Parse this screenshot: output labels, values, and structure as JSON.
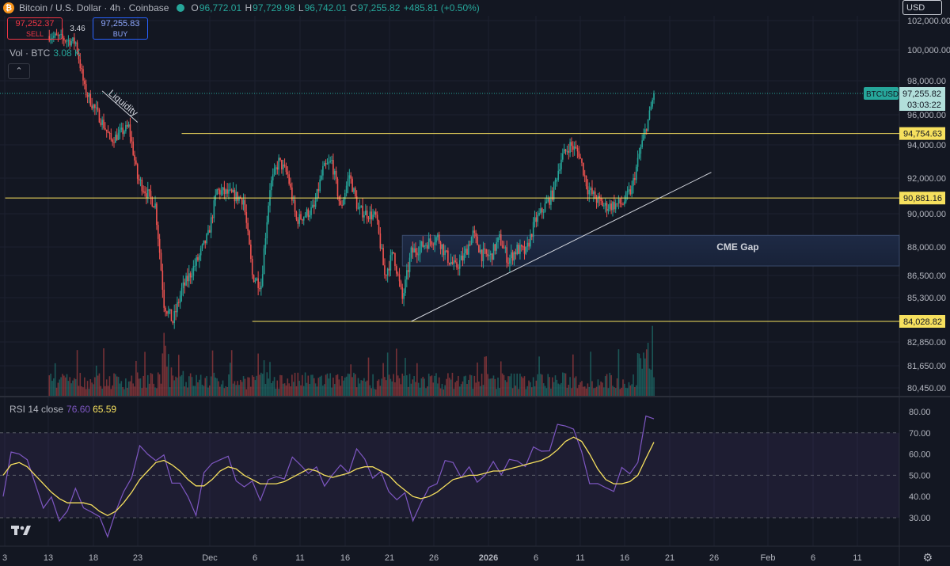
{
  "header": {
    "coin_glyph": "₿",
    "symbol_title": "Bitcoin / U.S. Dollar · 4h · Coinbase",
    "open_label": "O",
    "open": "96,772.01",
    "high_label": "H",
    "high": "97,729.98",
    "low_label": "L",
    "low": "96,742.01",
    "close_label": "C",
    "close": "97,255.82",
    "change": "+485.81 (+0.50%)"
  },
  "trade": {
    "sell_price": "97,252.37",
    "sell_label": "SELL",
    "spread": "3.46",
    "buy_price": "97,255.83",
    "buy_label": "BUY"
  },
  "volume_legend": {
    "label": "Vol · BTC",
    "value": "3.08 K"
  },
  "rsi_legend": {
    "label": "RSI 14 close",
    "rsi": "76.60",
    "ma": "65.59"
  },
  "currency_button": "USD",
  "collapse_glyph": "⌃",
  "settings_glyph": "⚙",
  "colors": {
    "bg": "#131722",
    "up": "#26a69a",
    "down": "#ef5350",
    "level": "#f6e05e",
    "rsi": "#7e57c2",
    "rsi_ma": "#f6e05e",
    "gap": "#1e2a45"
  },
  "chart_data": [
    {
      "type": "candlestick",
      "interval": "4h",
      "price_axis": {
        "ylim": [
          79900,
          102500
        ],
        "ticks": [
          "102,000.00",
          "100,000.00",
          "98,000.00",
          "96,000.00",
          "94,000.00",
          "92,000.00",
          "90,000.00",
          "88,000.00",
          "86,500.00",
          "85,300.00",
          "84,028.82",
          "82,850.00",
          "81,650.00",
          "80,450.00"
        ],
        "tick_values": [
          102000,
          100000,
          98000,
          96000,
          94000,
          92000,
          90000,
          88000,
          86500,
          85300,
          84028.82,
          82850,
          81650,
          80450
        ]
      },
      "time_axis": {
        "labels": [
          "3",
          "13",
          "18",
          "23",
          "Dec",
          "6",
          "11",
          "16",
          "21",
          "26",
          "2026",
          "6",
          "11",
          "16",
          "21",
          "26",
          "Feb",
          "6",
          "11"
        ],
        "bold_labels": [
          "2026"
        ]
      },
      "anchor_points": [
        {
          "date": "Nov 8",
          "price": 101000
        },
        {
          "date": "Nov 11",
          "price": 100500
        },
        {
          "date": "Nov 12",
          "price": 97500
        },
        {
          "date": "Nov 14",
          "price": 95500
        },
        {
          "date": "Nov 15",
          "price": 94300
        },
        {
          "date": "Nov 17",
          "price": 95200
        },
        {
          "date": "Nov 18",
          "price": 92000
        },
        {
          "date": "Nov 19",
          "price": 91200
        },
        {
          "date": "Nov 20",
          "price": 90500
        },
        {
          "date": "Nov 21",
          "price": 85000
        },
        {
          "date": "Nov 22",
          "price": 84000
        },
        {
          "date": "Nov 23",
          "price": 85700
        },
        {
          "date": "Nov 25",
          "price": 87500
        },
        {
          "date": "Nov 26",
          "price": 88700
        },
        {
          "date": "Nov 27",
          "price": 91300
        },
        {
          "date": "Nov 29",
          "price": 91000
        },
        {
          "date": "Nov 30",
          "price": 90800
        },
        {
          "date": "Dec 1",
          "price": 86500
        },
        {
          "date": "Dec 2",
          "price": 86000
        },
        {
          "date": "Dec 3",
          "price": 91500
        },
        {
          "date": "Dec 4",
          "price": 93000
        },
        {
          "date": "Dec 5",
          "price": 92200
        },
        {
          "date": "Dec 6",
          "price": 89600
        },
        {
          "date": "Dec 8",
          "price": 90300
        },
        {
          "date": "Dec 9",
          "price": 92500
        },
        {
          "date": "Dec 10",
          "price": 93000
        },
        {
          "date": "Dec 11",
          "price": 90300
        },
        {
          "date": "Dec 12",
          "price": 92200
        },
        {
          "date": "Dec 13",
          "price": 90200
        },
        {
          "date": "Dec 15",
          "price": 89800
        },
        {
          "date": "Dec 16",
          "price": 86500
        },
        {
          "date": "Dec 17",
          "price": 87700
        },
        {
          "date": "Dec 18",
          "price": 85200
        },
        {
          "date": "Dec 19",
          "price": 87700
        },
        {
          "date": "Dec 21",
          "price": 88300
        },
        {
          "date": "Dec 22",
          "price": 88600
        },
        {
          "date": "Dec 23",
          "price": 87500
        },
        {
          "date": "Dec 24",
          "price": 86900
        },
        {
          "date": "Dec 25",
          "price": 87500
        },
        {
          "date": "Dec 26",
          "price": 88800
        },
        {
          "date": "Dec 27",
          "price": 87600
        },
        {
          "date": "Dec 28",
          "price": 87500
        },
        {
          "date": "Dec 29",
          "price": 88500
        },
        {
          "date": "Dec 30",
          "price": 87300
        },
        {
          "date": "Dec 31",
          "price": 87900
        },
        {
          "date": "Jan 1",
          "price": 87700
        },
        {
          "date": "Jan 2",
          "price": 89500
        },
        {
          "date": "Jan 3",
          "price": 90300
        },
        {
          "date": "Jan 4",
          "price": 91100
        },
        {
          "date": "Jan 5",
          "price": 93200
        },
        {
          "date": "Jan 6",
          "price": 94000
        },
        {
          "date": "Jan 7",
          "price": 93500
        },
        {
          "date": "Jan 8",
          "price": 91400
        },
        {
          "date": "Jan 9",
          "price": 90800
        },
        {
          "date": "Jan 10",
          "price": 90400
        },
        {
          "date": "Jan 11",
          "price": 90500
        },
        {
          "date": "Jan 12",
          "price": 90600
        },
        {
          "date": "Jan 13",
          "price": 91400
        },
        {
          "date": "Jan 14",
          "price": 93800
        },
        {
          "date": "Jan 15",
          "price": 96000
        },
        {
          "date": "Jan 15 12:00",
          "price": 97255.82
        }
      ],
      "horizontal_levels": [
        {
          "price": 94754.63,
          "label": "94,754.63",
          "from_date": "Nov 23",
          "color": "#f6e05e"
        },
        {
          "price": 90881.16,
          "label": "90,881.16",
          "from_date": "Nov 3",
          "color": "#f6e05e"
        },
        {
          "price": 84028.82,
          "label": "84,028.82",
          "from_date": "Dec 1",
          "color": "#f6e05e"
        }
      ],
      "last_price": {
        "symbol": "BTCUSD",
        "price": "97,255.82",
        "countdown": "03:03:22",
        "value": 97255.82
      },
      "trendlines": [
        {
          "from": {
            "date": "Dec 19",
            "price": 84028.82
          },
          "to": {
            "date": "Jan 22",
            "price": 92350
          },
          "color": "#d1d4dc"
        },
        {
          "from": {
            "date": "Nov 14",
            "price": 97400
          },
          "to": {
            "date": "Nov 18",
            "price": 95500
          },
          "color": "#d1d4dc"
        }
      ],
      "annotations": [
        {
          "text": "Liquidity",
          "date": "Nov 15",
          "price": 97300
        },
        {
          "text": "CME Gap",
          "date": "Jan 25",
          "price": 88000
        }
      ],
      "zones": [
        {
          "name": "CME Gap",
          "price_top": 88700,
          "price_bottom": 87000,
          "from_date": "Dec 18",
          "to_date": "Feb 26"
        }
      ],
      "volume": {
        "label": "Vol · BTC",
        "last": "3.08 K",
        "note": "volume histogram, mostly low with spikes near Nov 22 and Jan 15"
      }
    },
    {
      "type": "line",
      "title": "RSI 14 close",
      "ylim": [
        20,
        82
      ],
      "ticks": [
        "80.00",
        "70.00",
        "60.00",
        "50.00",
        "40.00",
        "30.00"
      ],
      "tick_values": [
        80,
        70,
        60,
        50,
        40,
        30
      ],
      "band": [
        30,
        70
      ],
      "series": [
        {
          "name": "RSI",
          "color": "#7e57c2",
          "last": 76.6,
          "values": [
            40,
            58,
            64,
            55,
            45,
            38,
            36,
            30,
            35,
            40,
            38,
            32,
            28,
            25,
            30,
            42,
            52,
            60,
            62,
            58,
            56,
            50,
            45,
            38,
            35,
            48,
            56,
            60,
            55,
            50,
            45,
            44,
            42,
            46,
            48,
            52,
            55,
            56,
            53,
            50,
            48,
            50,
            52,
            55,
            60,
            57,
            52,
            48,
            44,
            40,
            38,
            32,
            36,
            42,
            50,
            54,
            56,
            52,
            50,
            49,
            51,
            53,
            54,
            56,
            55,
            58,
            60,
            62,
            64,
            70,
            76,
            72,
            58,
            50,
            44,
            43,
            46,
            50,
            52,
            58,
            74,
            76.6
          ]
        },
        {
          "name": "RSI MA",
          "color": "#f6e05e",
          "last": 65.59,
          "values": [
            50,
            55,
            56,
            54,
            50,
            46,
            42,
            39,
            37,
            37,
            37,
            36,
            33,
            31,
            33,
            37,
            42,
            48,
            52,
            56,
            57,
            55,
            52,
            48,
            45,
            45,
            48,
            52,
            54,
            53,
            50,
            48,
            46,
            46,
            46,
            47,
            49,
            51,
            53,
            52,
            50,
            49,
            50,
            51,
            53,
            54,
            54,
            52,
            50,
            46,
            43,
            40,
            39,
            40,
            42,
            45,
            48,
            49,
            50,
            50,
            51,
            52,
            52,
            53,
            54,
            55,
            56,
            57,
            59,
            62,
            66,
            68,
            66,
            60,
            53,
            48,
            46,
            46,
            47,
            50,
            58,
            65.59
          ]
        }
      ]
    }
  ]
}
